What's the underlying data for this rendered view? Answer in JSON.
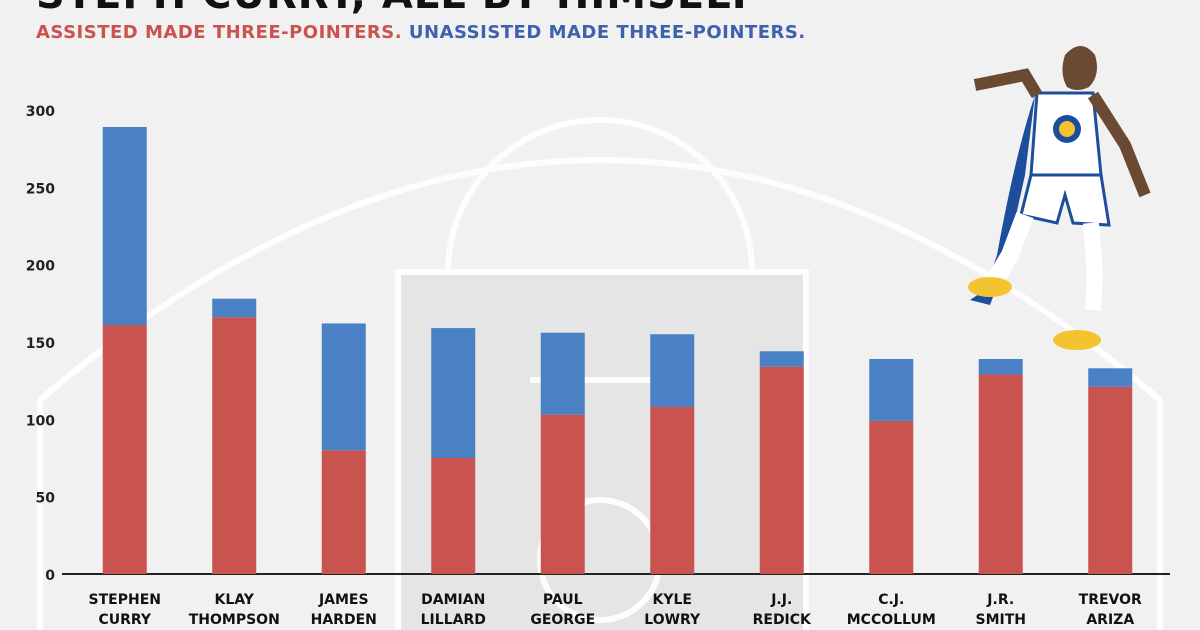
{
  "title": "STEPH CURRY, ALL BY HIMSELF",
  "subtitle_assisted": "ASSISTED MADE THREE-POINTERS.",
  "subtitle_unassisted": "UNASSISTED MADE THREE-POINTERS.",
  "colors": {
    "assisted": "#c9534f",
    "unassisted": "#4a80c4",
    "background": "#f1f1f1"
  },
  "chart_data": {
    "type": "bar",
    "stacked": true,
    "categories": [
      [
        "STEPHEN",
        "CURRY"
      ],
      [
        "KLAY",
        "THOMPSON"
      ],
      [
        "JAMES",
        "HARDEN"
      ],
      [
        "DAMIAN",
        "LILLARD"
      ],
      [
        "PAUL",
        "GEORGE"
      ],
      [
        "KYLE",
        "LOWRY"
      ],
      [
        "J.J.",
        "REDICK"
      ],
      [
        "C.J.",
        "MCCOLLUM"
      ],
      [
        "J.R.",
        "SMITH"
      ],
      [
        "TREVOR",
        "ARIZA"
      ]
    ],
    "series": [
      {
        "values": [
          161,
          166,
          80,
          75,
          103,
          108,
          134,
          99,
          129,
          121
        ]
      },
      {
        "values": [
          128,
          12,
          82,
          84,
          53,
          47,
          10,
          40,
          10,
          12
        ]
      }
    ],
    "ylim": [
      0,
      300
    ],
    "yticks": [
      0,
      50,
      100,
      150,
      200,
      250,
      300
    ],
    "grid": false,
    "legend": "subtitle"
  }
}
